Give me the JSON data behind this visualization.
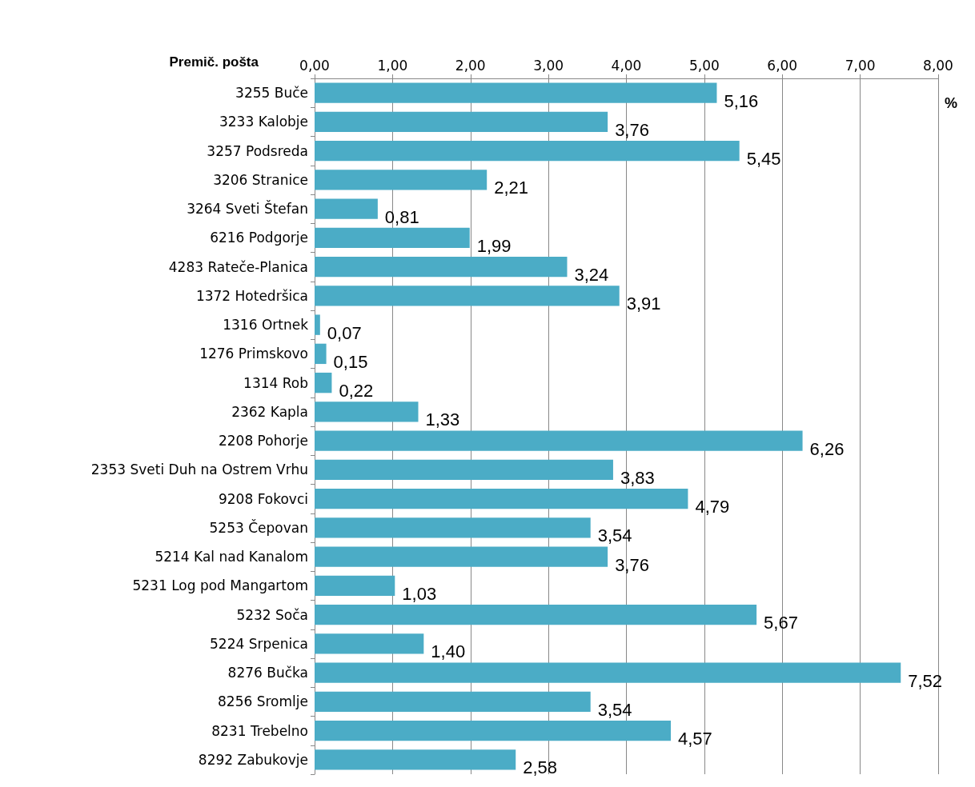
{
  "chart_data": {
    "type": "bar",
    "orientation": "horizontal",
    "ylabel": "Premič. pošta",
    "xlabel": "%",
    "categories": [
      "3255 Buče",
      "3233 Kalobje",
      "3257 Podsreda",
      "3206 Stranice",
      "3264 Sveti Štefan",
      "6216 Podgorje",
      "4283 Rateče-Planica",
      "1372 Hotedršica",
      "1316 Ortnek",
      "1276 Primskovo",
      "1314 Rob",
      "2362 Kapla",
      "2208 Pohorje",
      "2353 Sveti Duh na Ostrem Vrhu",
      "9208 Fokovci",
      "5253 Čepovan",
      "5214 Kal nad Kanalom",
      "5231 Log pod Mangartom",
      "5232 Soča",
      "5224 Srpenica",
      "8276 Bučka",
      "8256 Sromlje",
      "8231 Trebelno",
      "8292 Zabukovje"
    ],
    "values": [
      5.16,
      3.76,
      5.45,
      2.21,
      0.81,
      1.99,
      3.24,
      3.91,
      0.07,
      0.15,
      0.22,
      1.33,
      6.26,
      3.83,
      4.79,
      3.54,
      3.76,
      1.03,
      5.67,
      1.4,
      7.52,
      3.54,
      4.57,
      2.58
    ],
    "value_labels": [
      "5,16",
      "3,76",
      "5,45",
      "2,21",
      "0,81",
      "1,99",
      "3,24",
      "3,91",
      "0,07",
      "0,15",
      "0,22",
      "1,33",
      "6,26",
      "3,83",
      "4,79",
      "3,54",
      "3,76",
      "1,03",
      "5,67",
      "1,40",
      "7,52",
      "3,54",
      "4,57",
      "2,58"
    ],
    "color": "#4bacc6",
    "xlim": [
      0,
      8
    ],
    "xticks": [
      {
        "value": 0,
        "label": "0,00"
      },
      {
        "value": 1,
        "label": "1,00"
      },
      {
        "value": 2,
        "label": "2,00"
      },
      {
        "value": 3,
        "label": "3,00"
      },
      {
        "value": 4,
        "label": "4,00"
      },
      {
        "value": 5,
        "label": "5,00"
      },
      {
        "value": 6,
        "label": "6,00"
      },
      {
        "value": 7,
        "label": "7,00"
      },
      {
        "value": 8,
        "label": "8,00"
      }
    ],
    "grid": "x"
  }
}
